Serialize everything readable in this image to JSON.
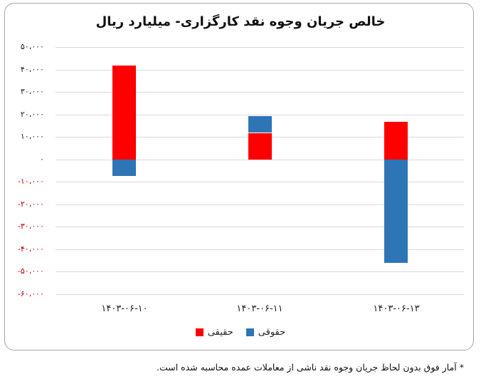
{
  "chart_data": {
    "type": "bar",
    "stacked": true,
    "title": "خالص جریان وجوه نقد کارگزاری- میلیارد ریال",
    "xlabel": "",
    "ylabel": "میلیارد ریال",
    "categories": [
      "۱۴۰۳-۰۶-۱۰",
      "۱۴۰۳-۰۶-۱۱",
      "۱۴۰۳-۰۶-۱۳"
    ],
    "series": [
      {
        "name": "حقیقی",
        "color": "#ff0000",
        "values": [
          41700,
          11800,
          16600
        ]
      },
      {
        "name": "حقوقی",
        "color": "#2e75b6",
        "values": [
          -7300,
          7300,
          -46200
        ]
      }
    ],
    "ylim": [
      -60000,
      50000
    ],
    "yticks": [
      50000,
      40000,
      30000,
      20000,
      10000,
      0,
      -10000,
      -20000,
      -30000,
      -40000,
      -50000,
      -60000
    ],
    "ytick_labels": [
      "۵۰،۰۰۰",
      "۴۰،۰۰۰",
      "۳۰،۰۰۰",
      "۲۰،۰۰۰",
      "۱۰،۰۰۰",
      "۰",
      "-۱۰،۰۰۰",
      "-۲۰،۰۰۰",
      "-۳۰،۰۰۰",
      "-۴۰،۰۰۰",
      "-۵۰،۰۰۰",
      "-۶۰،۰۰۰"
    ],
    "grid": true,
    "legend_position": "bottom"
  },
  "chart": {
    "title": "خالص جریان وجوه نقد کارگزاری- میلیارد ریال",
    "xticks": [
      "۱۴۰۳-۰۶-۱۰",
      "۱۴۰۳-۰۶-۱۱",
      "۱۴۰۳-۰۶-۱۳"
    ],
    "legend": {
      "real": "حقیقی",
      "legal": "حقوقی"
    },
    "colors": {
      "real": "#ff0000",
      "legal": "#2e75b6",
      "negative_tick": "#c00000",
      "grid": "#d9d9d9"
    }
  },
  "footnote": "* آمار فوق بدون لحاظ جریان وجوه نقد ناشی از معاملات عمده محاسبه شده است."
}
